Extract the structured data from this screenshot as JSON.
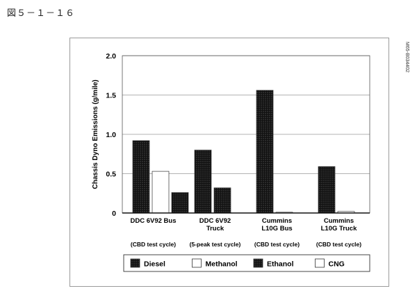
{
  "figure_label": "図５－１－１６",
  "side_code": "M65-B034402",
  "colors": {
    "dark": "#111111",
    "light": "#ffffff",
    "grid": "#9a9a9a",
    "stipple": "#6a6a6a"
  },
  "chart_data": {
    "type": "bar",
    "title": "",
    "ylabel": "Chassis Dyno Emissions (g/mile)",
    "xlabel": "",
    "ylim": [
      0,
      2.0
    ],
    "yticks": [
      "0",
      "0.5",
      "1.0",
      "1.5",
      "2.0"
    ],
    "ytick_values": [
      0,
      0.5,
      1.0,
      1.5,
      2.0
    ],
    "grid": true,
    "categories": [
      {
        "lines": [
          "DDC 6V92 Bus"
        ],
        "cycle": "(CBD test cycle)"
      },
      {
        "lines": [
          "DDC 6V92",
          "Truck"
        ],
        "cycle": "(5-peak test cycle)"
      },
      {
        "lines": [
          "Cummins",
          "L10G Bus"
        ],
        "cycle": "(CBD test cycle)"
      },
      {
        "lines": [
          "Cummins",
          "L10G Truck"
        ],
        "cycle": "(CBD test cycle)"
      }
    ],
    "series": [
      {
        "name": "Diesel",
        "fill": "dark",
        "values": [
          0.92,
          0.8,
          1.56,
          0.59
        ]
      },
      {
        "name": "Methanol",
        "fill": "light",
        "values": [
          0.53,
          null,
          null,
          null
        ]
      },
      {
        "name": "Ethanol",
        "fill": "dark",
        "values": [
          0.26,
          0.32,
          null,
          null
        ]
      },
      {
        "name": "CNG",
        "fill": "light",
        "values": [
          null,
          null,
          0.01,
          0.02
        ]
      }
    ],
    "legend": {
      "placement": "bottom",
      "items": [
        "Diesel",
        "Methanol",
        "Ethanol",
        "CNG"
      ]
    }
  }
}
